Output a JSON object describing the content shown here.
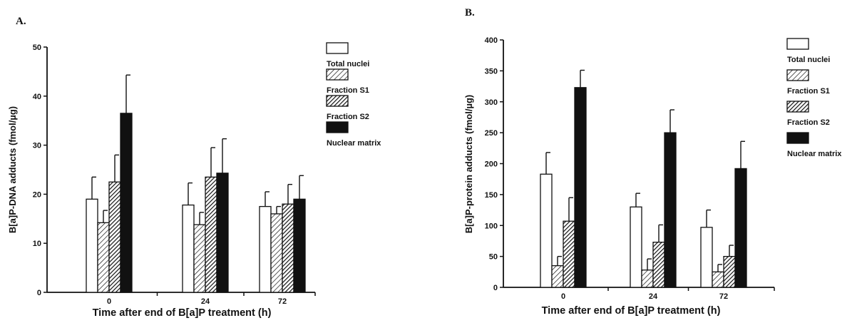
{
  "chart_data": [
    {
      "panel_label": "A.",
      "type": "bar",
      "categories": [
        "0",
        "24",
        "72"
      ],
      "xlabel": "Time after end of B[a]P treatment  (h)",
      "ylabel": "B[a]P-DNA adducts  (fmol/µg)",
      "ylim": [
        0,
        50
      ],
      "yticks": [
        "0",
        "10",
        "20",
        "30",
        "40",
        "50"
      ],
      "legend_position": "right",
      "series": [
        {
          "name": "Total nuclei",
          "pattern": "white",
          "values": [
            19,
            17.8,
            17.5
          ],
          "errors": [
            4.5,
            4.5,
            3
          ]
        },
        {
          "name": "Fraction S1",
          "pattern": "light-hatch",
          "values": [
            14.2,
            13.8,
            16
          ],
          "errors": [
            2.5,
            2.5,
            1.5
          ]
        },
        {
          "name": "Fraction S2",
          "pattern": "dense-hatch",
          "values": [
            22.5,
            23.5,
            18
          ],
          "errors": [
            5.5,
            6,
            4
          ]
        },
        {
          "name": "Nuclear matrix",
          "pattern": "black",
          "values": [
            36.5,
            24.3,
            19
          ],
          "errors": [
            7.8,
            7,
            4.8
          ]
        }
      ]
    },
    {
      "panel_label": "B.",
      "type": "bar",
      "categories": [
        "0",
        "24",
        "72"
      ],
      "xlabel": "Time after end of B[a]P treatment  (h)",
      "ylabel": "B[a]P-protein adducts  (fmol/µg)",
      "ylim": [
        0,
        400
      ],
      "yticks": [
        "0",
        "50",
        "100",
        "150",
        "200",
        "250",
        "300",
        "350",
        "400"
      ],
      "legend_position": "right",
      "series": [
        {
          "name": "Total nuclei",
          "pattern": "white",
          "values": [
            183,
            130,
            97
          ],
          "errors": [
            35,
            22,
            28
          ]
        },
        {
          "name": "Fraction S1",
          "pattern": "light-hatch",
          "values": [
            35,
            28,
            25
          ],
          "errors": [
            15,
            18,
            12
          ]
        },
        {
          "name": "Fraction S2",
          "pattern": "dense-hatch",
          "values": [
            107,
            73,
            50
          ],
          "errors": [
            38,
            28,
            18
          ]
        },
        {
          "name": "Nuclear matrix",
          "pattern": "black",
          "values": [
            323,
            250,
            192
          ],
          "errors": [
            28,
            37,
            44
          ]
        }
      ]
    }
  ]
}
